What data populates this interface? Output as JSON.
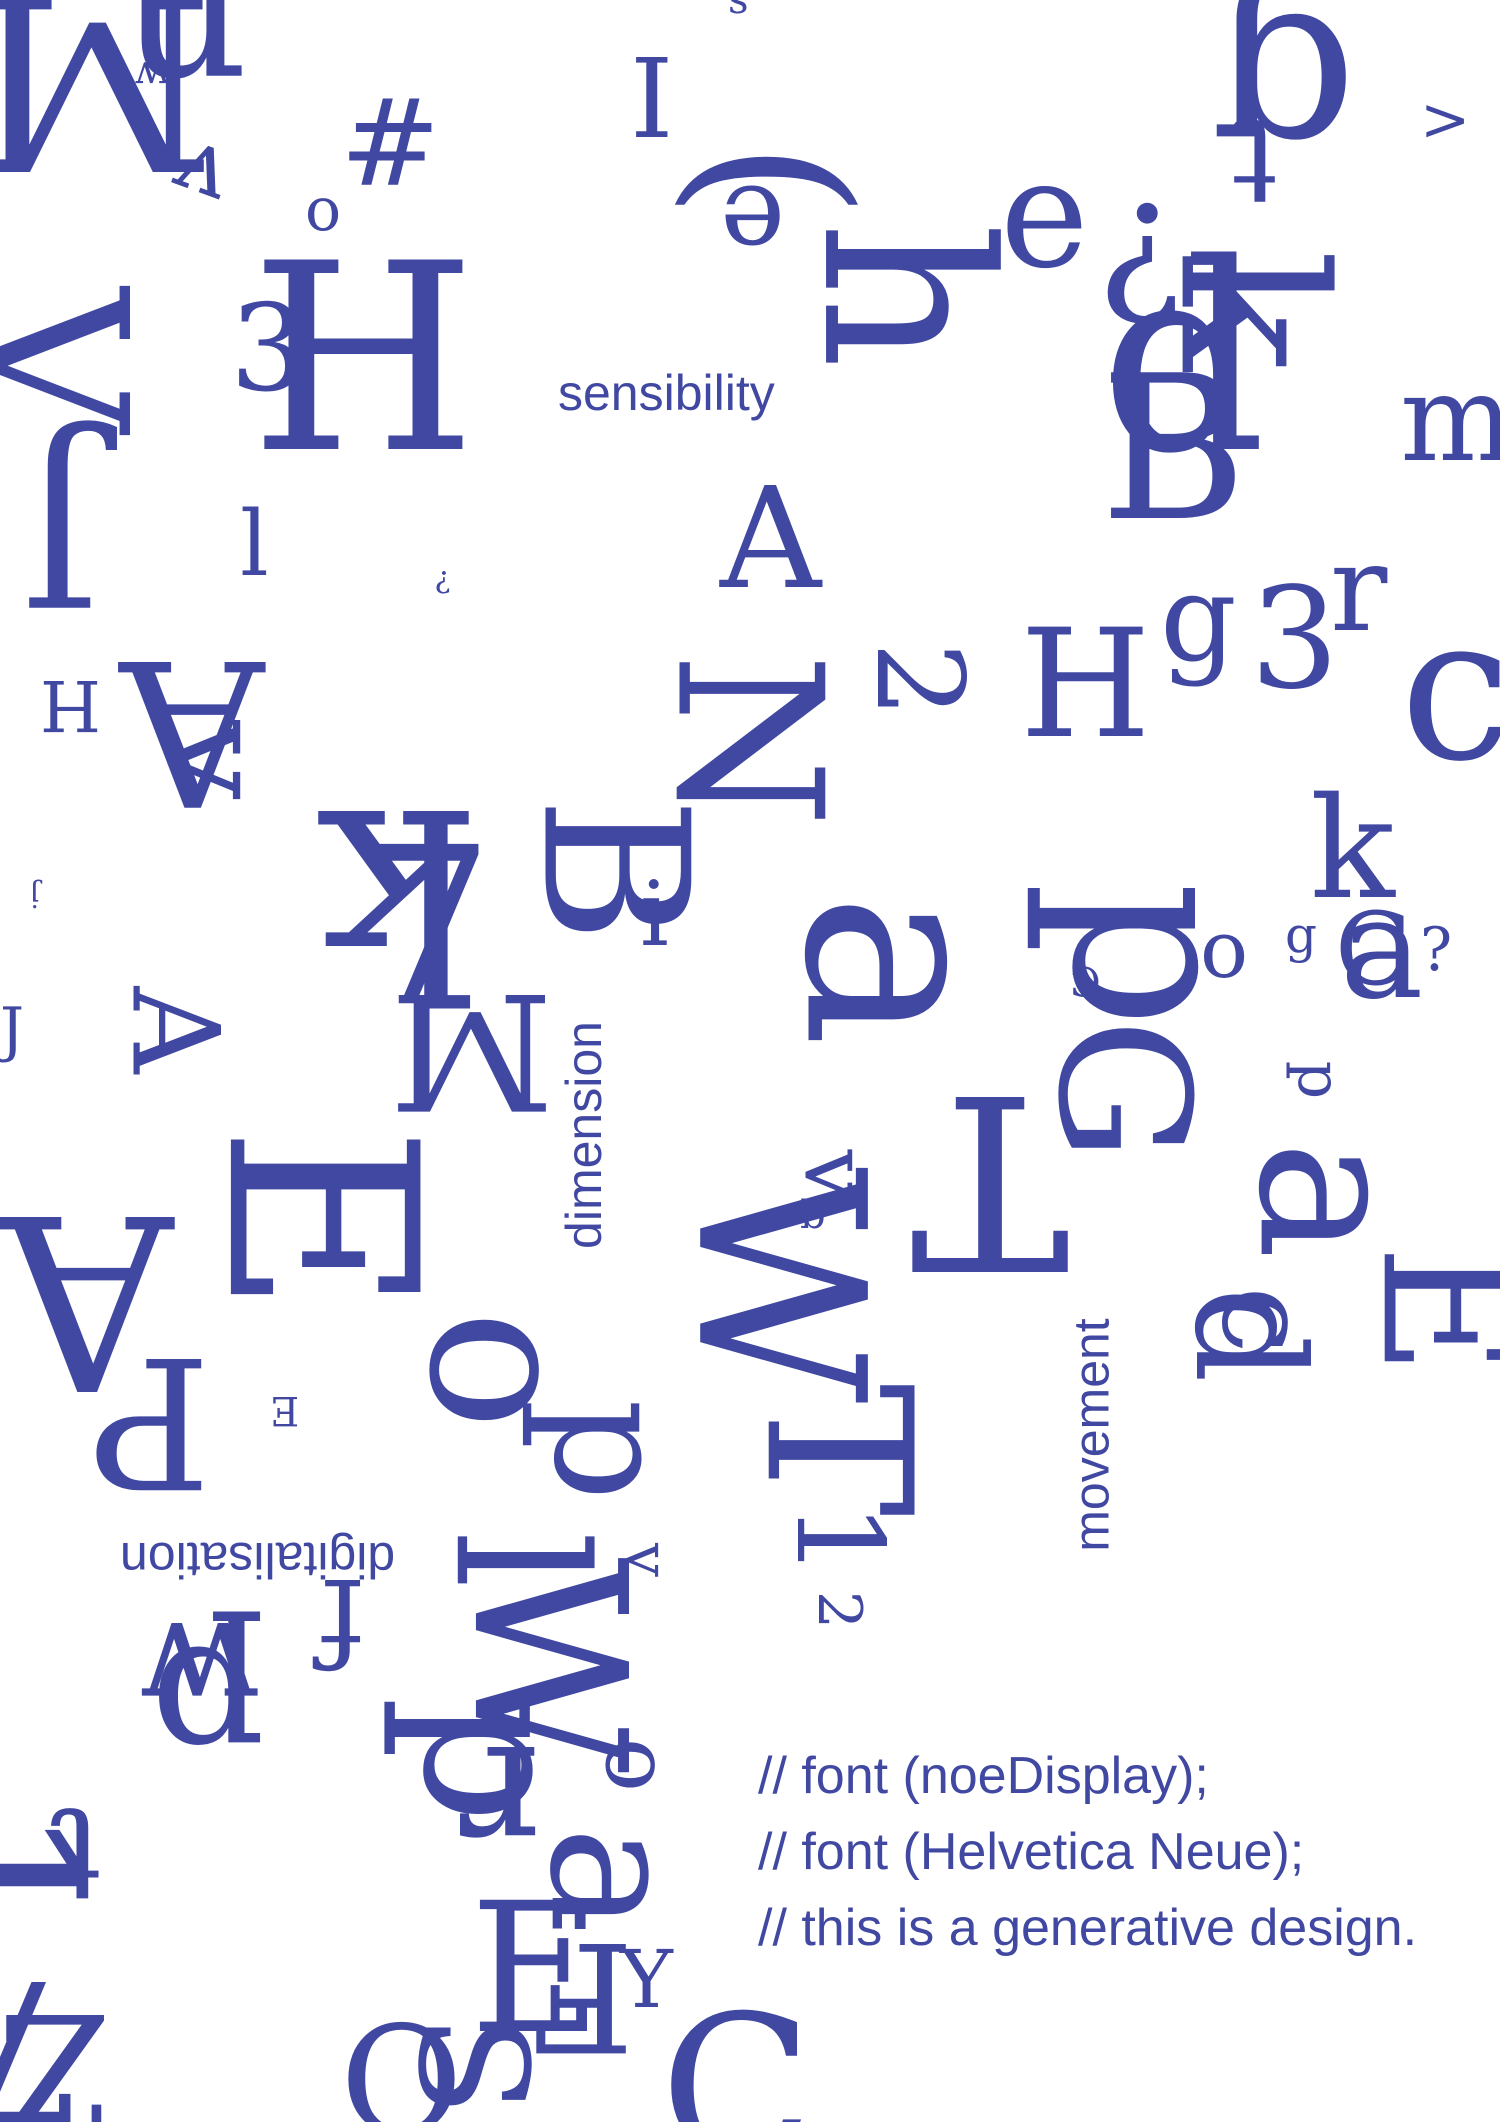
{
  "colors": {
    "ink": "#4048A2",
    "background": "#FFFFFF"
  },
  "words": [
    {
      "name": "word-sensibility",
      "text": "sensibility"
    },
    {
      "name": "word-dimension",
      "text": "dimension"
    },
    {
      "name": "word-movement",
      "text": "movement"
    },
    {
      "name": "word-digitalisation",
      "text": "digitalisation"
    }
  ],
  "code_lines": [
    "// font (noeDisplay);",
    "// font (Helvetica Neue);",
    "// this is a generative design."
  ],
  "glyphs": [
    "M",
    "n",
    "w",
    "v",
    "s",
    "I",
    "(",
    "#",
    "g",
    ">",
    "t",
    "V",
    "o",
    "H",
    "3",
    "e",
    "h",
    "J",
    "l",
    "e",
    "?",
    "k",
    "d",
    "B",
    "m",
    "A",
    "?",
    "N",
    "2",
    "H",
    "g",
    "3",
    "r",
    "c",
    "H",
    "A",
    "v",
    "k",
    "a",
    "p",
    "k",
    "a",
    "A",
    "7",
    "B",
    "j",
    "i",
    "M",
    "o",
    "g",
    "C",
    "?",
    "G",
    "C",
    "E",
    "T",
    "p",
    "J",
    "a",
    "A",
    "W",
    "P",
    "d",
    "c",
    "E",
    "w",
    "f",
    "T",
    "1",
    "p",
    "l",
    "W",
    "p",
    "v",
    "o",
    "r",
    "p",
    "t",
    "1",
    "v",
    "E",
    "a",
    "Y",
    "o",
    "q",
    "2",
    "E",
    "S",
    "O",
    "7",
    "F",
    "C",
    "Z"
  ]
}
